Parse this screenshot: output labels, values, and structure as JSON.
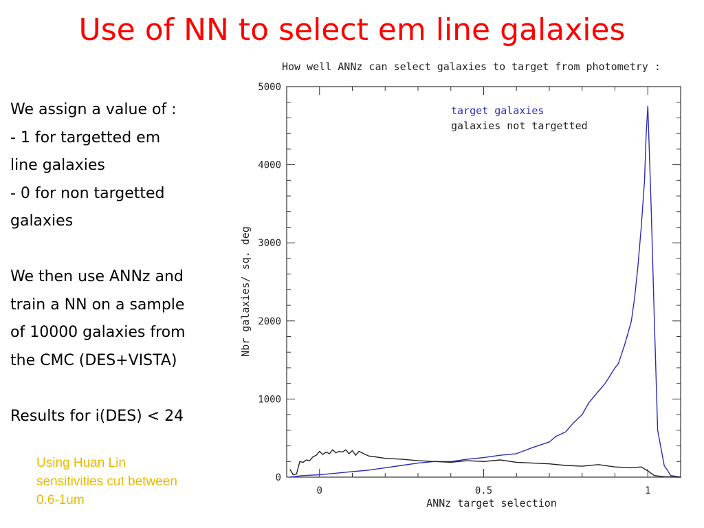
{
  "slide": {
    "title": "Use of NN to select em line galaxies",
    "body_lines": [
      "We assign a value of :",
      "- 1 for targetted em",
      "line galaxies",
      "- 0 for non targetted",
      "galaxies",
      "",
      "We then use ANNz and",
      "train a NN on a sample",
      "of 10000 galaxies from",
      "the CMC (DES+VISTA)",
      "",
      "Results for i(DES) < 24"
    ],
    "note_lines": [
      "Using Huan Lin",
      "sensitivities cut between",
      "0.6-1um"
    ],
    "note_color": "#e8b800",
    "title_color": "#ff0000"
  },
  "chart_data": {
    "type": "line",
    "title": "How well ANNz can select galaxies to target from photometry :",
    "xlabel": "ANNz target selection",
    "ylabel": "Nbr galaxies/ sq. deg",
    "xlim": [
      -0.1,
      1.1
    ],
    "ylim": [
      0,
      5000
    ],
    "xticks": [
      0,
      0.5,
      1
    ],
    "xtick_labels": [
      "0",
      "0.5",
      "1"
    ],
    "yticks": [
      0,
      1000,
      2000,
      3000,
      4000,
      5000
    ],
    "ytick_labels": [
      "0",
      "1000",
      "2000",
      "3000",
      "4000",
      "5000"
    ],
    "legend_position": "top-right",
    "series": [
      {
        "name": "target galaxies",
        "color": "#2b2bb8",
        "x": [
          -0.09,
          -0.05,
          0,
          0.05,
          0.1,
          0.15,
          0.2,
          0.25,
          0.3,
          0.35,
          0.4,
          0.45,
          0.5,
          0.55,
          0.6,
          0.65,
          0.7,
          0.72,
          0.75,
          0.77,
          0.8,
          0.82,
          0.85,
          0.87,
          0.9,
          0.91,
          0.93,
          0.95,
          0.96,
          0.97,
          0.98,
          0.99,
          0.995,
          1.0,
          1.01,
          1.02,
          1.03,
          1.05,
          1.07,
          1.1
        ],
        "y": [
          0,
          20,
          30,
          50,
          70,
          90,
          120,
          150,
          180,
          200,
          200,
          230,
          250,
          280,
          300,
          380,
          450,
          520,
          580,
          680,
          800,
          950,
          1100,
          1200,
          1400,
          1450,
          1700,
          2000,
          2300,
          2700,
          3200,
          3800,
          4400,
          4750,
          3500,
          2000,
          600,
          150,
          20,
          0
        ]
      },
      {
        "name": "galaxies not targetted",
        "color": "#222222",
        "x": [
          -0.09,
          -0.08,
          -0.07,
          -0.06,
          -0.05,
          -0.04,
          -0.03,
          -0.02,
          -0.01,
          0,
          0.01,
          0.02,
          0.03,
          0.04,
          0.05,
          0.06,
          0.07,
          0.08,
          0.09,
          0.1,
          0.11,
          0.12,
          0.13,
          0.14,
          0.15,
          0.17,
          0.2,
          0.25,
          0.3,
          0.35,
          0.4,
          0.45,
          0.5,
          0.55,
          0.6,
          0.65,
          0.7,
          0.75,
          0.8,
          0.85,
          0.9,
          0.95,
          0.98,
          1.0,
          1.02,
          1.05,
          1.1
        ],
        "y": [
          100,
          30,
          40,
          200,
          190,
          220,
          210,
          260,
          280,
          330,
          290,
          320,
          300,
          350,
          310,
          330,
          320,
          350,
          300,
          340,
          280,
          330,
          310,
          290,
          270,
          260,
          240,
          230,
          210,
          200,
          190,
          210,
          200,
          220,
          190,
          180,
          170,
          150,
          140,
          160,
          130,
          120,
          130,
          80,
          20,
          5,
          0
        ]
      }
    ]
  }
}
